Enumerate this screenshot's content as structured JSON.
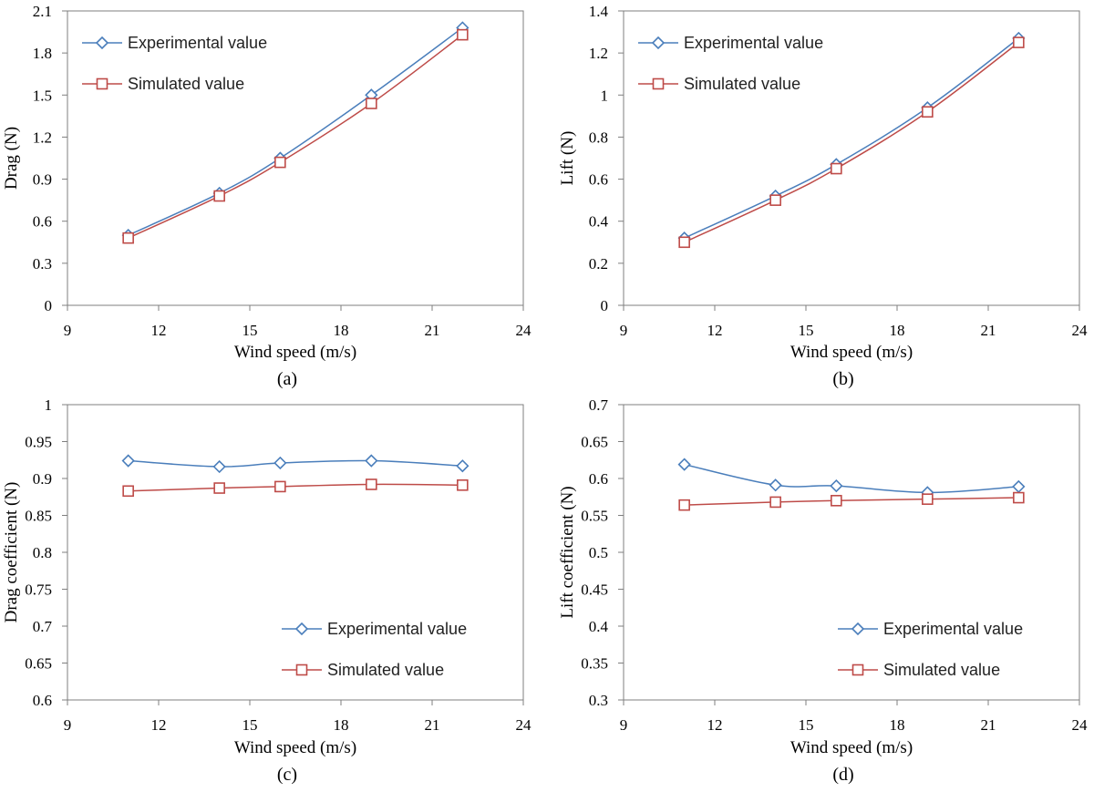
{
  "colors": {
    "experimental": "#4a7ebb",
    "simulated": "#be4b48",
    "axis": "#7f7f7f"
  },
  "chart_data": [
    {
      "panel_label": "(a)",
      "type": "line",
      "xlabel": "Wind speed (m/s)",
      "ylabel": "Drag (N)",
      "xlim": [
        9,
        24
      ],
      "ylim": [
        0,
        2.1
      ],
      "xticks": [
        9,
        12,
        15,
        18,
        21,
        24
      ],
      "yticks": [
        0,
        0.3,
        0.6,
        0.9,
        1.2,
        1.5,
        1.8,
        2.1
      ],
      "x": [
        11,
        14,
        16,
        19,
        22
      ],
      "legend_position": "top-left",
      "series": [
        {
          "name": "Experimental value",
          "marker": "diamond",
          "values": [
            0.5,
            0.8,
            1.05,
            1.5,
            1.98
          ]
        },
        {
          "name": "Simulated value",
          "marker": "square",
          "values": [
            0.48,
            0.78,
            1.02,
            1.44,
            1.93
          ]
        }
      ]
    },
    {
      "panel_label": "(b)",
      "type": "line",
      "xlabel": "Wind speed (m/s)",
      "ylabel": "Lift (N)",
      "xlim": [
        9,
        24
      ],
      "ylim": [
        0,
        1.4
      ],
      "xticks": [
        9,
        12,
        15,
        18,
        21,
        24
      ],
      "yticks": [
        0,
        0.2,
        0.4,
        0.6,
        0.8,
        1,
        1.2,
        1.4
      ],
      "x": [
        11,
        14,
        16,
        19,
        22
      ],
      "legend_position": "top-left",
      "series": [
        {
          "name": "Experimental value",
          "marker": "diamond",
          "values": [
            0.32,
            0.52,
            0.67,
            0.94,
            1.27
          ]
        },
        {
          "name": "Simulated value",
          "marker": "square",
          "values": [
            0.3,
            0.5,
            0.65,
            0.92,
            1.25
          ]
        }
      ]
    },
    {
      "panel_label": "(c)",
      "type": "line",
      "xlabel": "Wind speed (m/s)",
      "ylabel": "Drag coefficient (N)",
      "xlim": [
        9,
        24
      ],
      "ylim": [
        0.6,
        1
      ],
      "xticks": [
        9,
        12,
        15,
        18,
        21,
        24
      ],
      "yticks": [
        0.6,
        0.65,
        0.7,
        0.75,
        0.8,
        0.85,
        0.9,
        0.95,
        1
      ],
      "x": [
        11,
        14,
        16,
        19,
        22
      ],
      "legend_position": "bottom-right",
      "series": [
        {
          "name": "Experimental value",
          "marker": "diamond",
          "values": [
            0.924,
            0.916,
            0.921,
            0.924,
            0.917
          ]
        },
        {
          "name": "Simulated value",
          "marker": "square",
          "values": [
            0.883,
            0.887,
            0.889,
            0.892,
            0.891
          ]
        }
      ]
    },
    {
      "panel_label": "(d)",
      "type": "line",
      "xlabel": "Wind speed (m/s)",
      "ylabel": "Lift coefficient (N)",
      "xlim": [
        9,
        24
      ],
      "ylim": [
        0.3,
        0.7
      ],
      "xticks": [
        9,
        12,
        15,
        18,
        21,
        24
      ],
      "yticks": [
        0.3,
        0.35,
        0.4,
        0.45,
        0.5,
        0.55,
        0.6,
        0.65,
        0.7
      ],
      "x": [
        11,
        14,
        16,
        19,
        22
      ],
      "legend_position": "bottom-right",
      "series": [
        {
          "name": "Experimental value",
          "marker": "diamond",
          "values": [
            0.619,
            0.591,
            0.59,
            0.581,
            0.589
          ]
        },
        {
          "name": "Simulated value",
          "marker": "square",
          "values": [
            0.564,
            0.568,
            0.57,
            0.572,
            0.574
          ]
        }
      ]
    }
  ]
}
